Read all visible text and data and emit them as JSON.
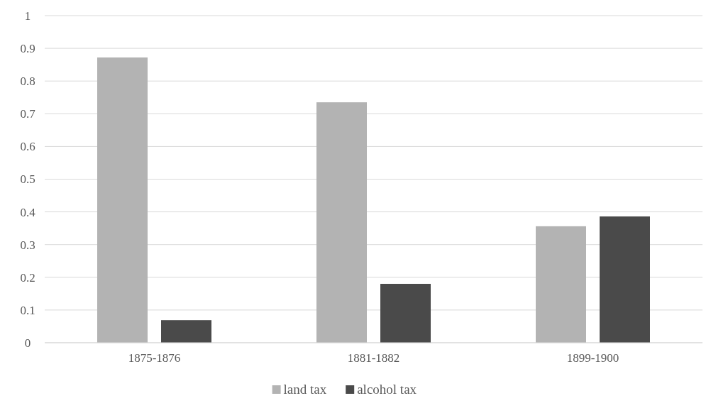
{
  "chart_data": {
    "type": "bar",
    "categories": [
      "1875-1876",
      "1881-1882",
      "1899-1900"
    ],
    "series": [
      {
        "name": "land tax",
        "color": "#b3b3b3",
        "values": [
          0.872,
          0.735,
          0.356
        ]
      },
      {
        "name": "alcohol tax",
        "color": "#4a4a4a",
        "values": [
          0.069,
          0.18,
          0.386
        ]
      }
    ],
    "ylim": [
      0,
      1
    ],
    "yticks": [
      0,
      0.1,
      0.2,
      0.3,
      0.4,
      0.5,
      0.6,
      0.7,
      0.8,
      0.9,
      1
    ],
    "grid": "y",
    "legend": "bottom"
  }
}
